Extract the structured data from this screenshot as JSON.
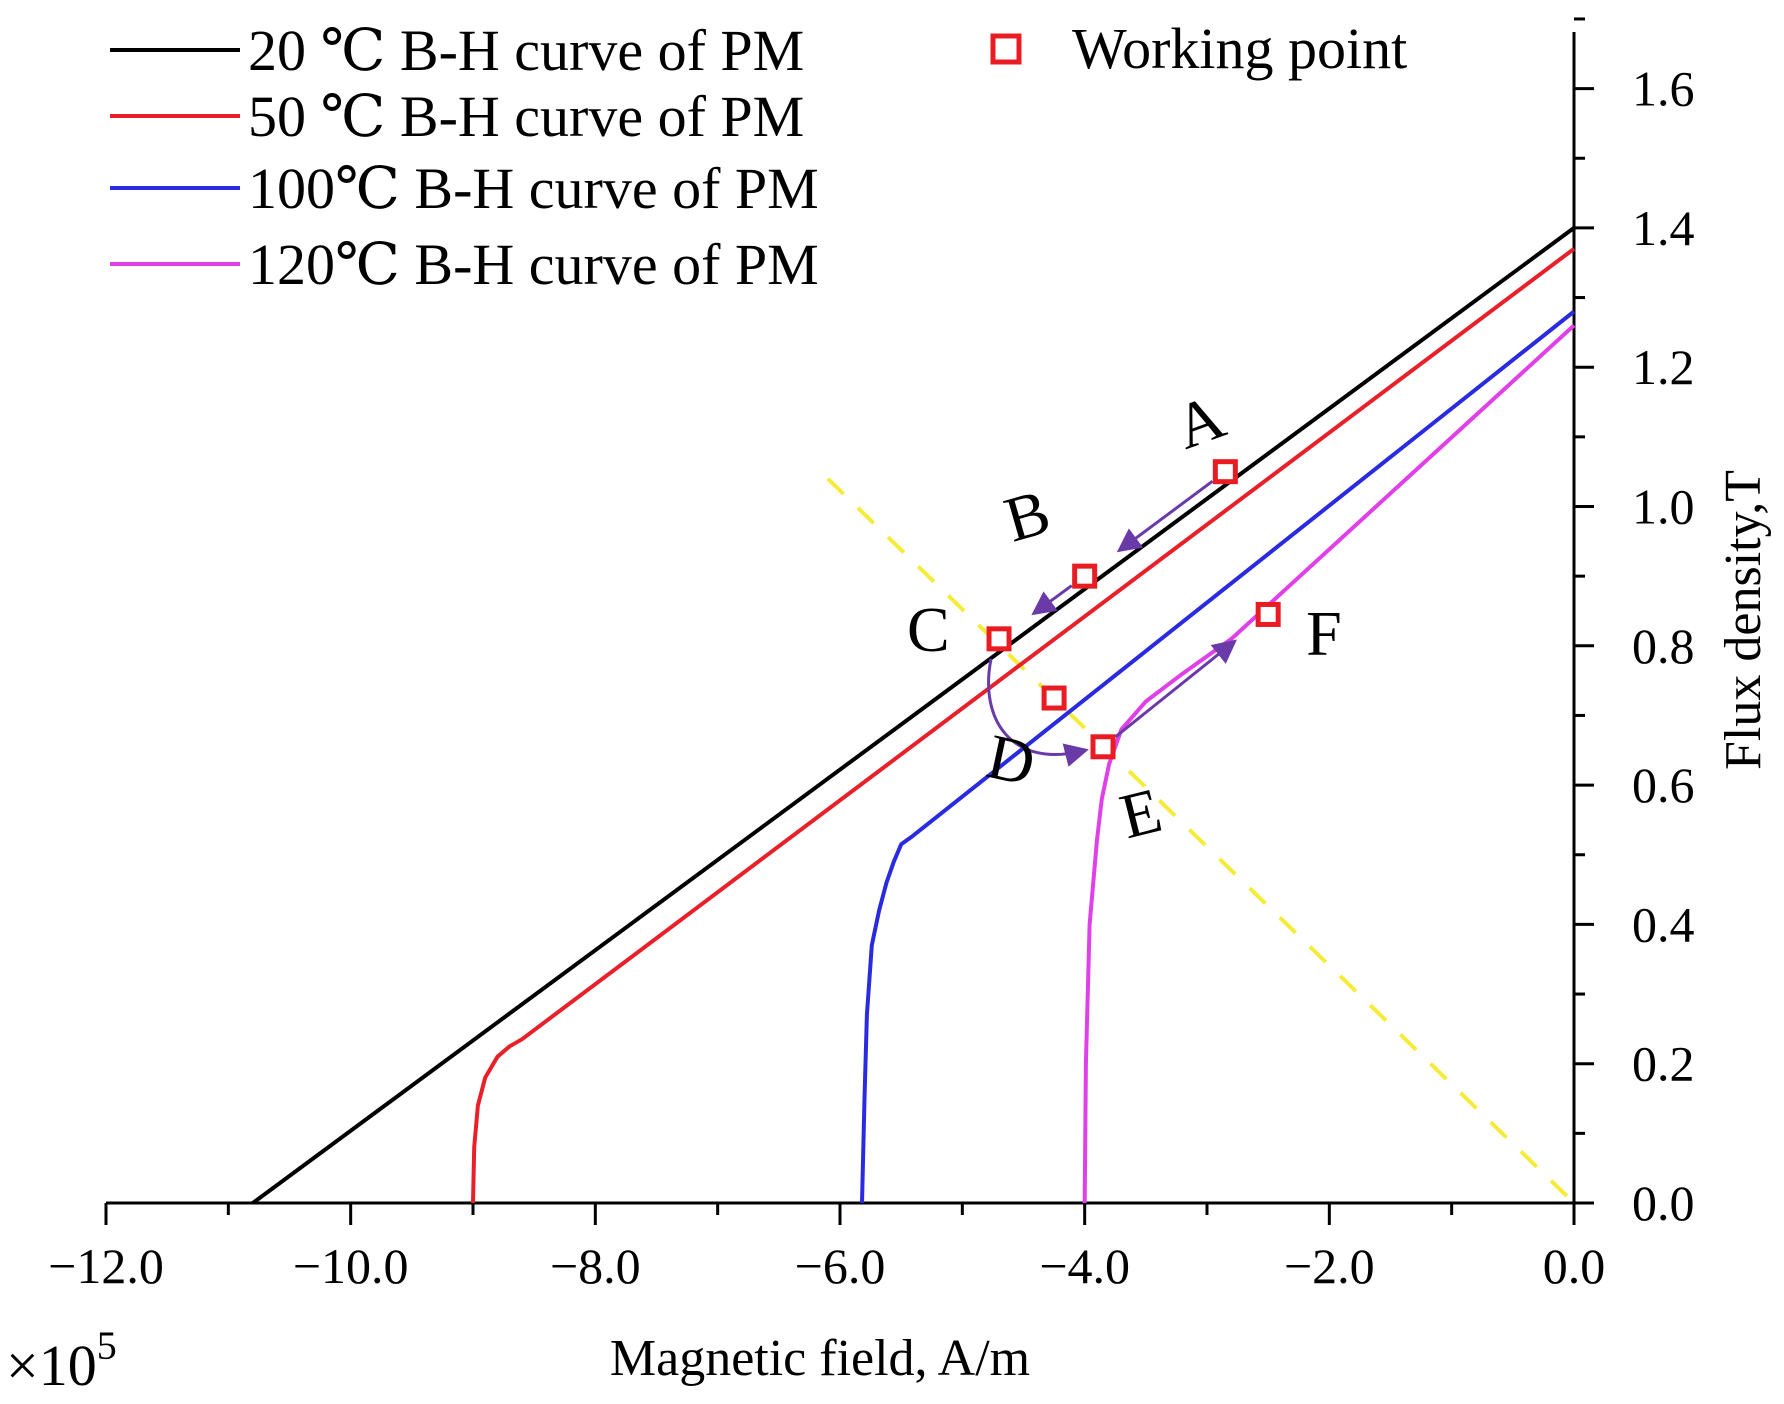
{
  "chart_data": {
    "type": "line",
    "title": "",
    "xlabel": "Magnetic field, A/m",
    "ylabel": "Flux density,T",
    "x_multiplier": "×10^5",
    "x_multiplier_base": "×10",
    "x_multiplier_exp": "5",
    "xlim": [
      -12.0,
      0.0
    ],
    "ylim": [
      0.0,
      1.72
    ],
    "x_ticks": [
      -12.0,
      -10.0,
      -8.0,
      -6.0,
      -4.0,
      -2.0,
      0.0
    ],
    "x_tick_labels": [
      "−12.0",
      "−10.0",
      "−8.0",
      "−6.0",
      "−4.0",
      "−2.0",
      "0.0"
    ],
    "y_ticks": [
      0.0,
      0.2,
      0.4,
      0.6,
      0.8,
      1.0,
      1.2,
      1.4,
      1.6
    ],
    "y_tick_labels": [
      "0.0",
      "0.2",
      "0.4",
      "0.6",
      "0.8",
      "1.0",
      "1.2",
      "1.4",
      "1.6"
    ],
    "y_axis_side": "right",
    "grid": false,
    "legend_position": "top-left",
    "series": [
      {
        "name": "20 ℃ B-H curve of PM",
        "color": "#000000",
        "x": [
          -10.8,
          0.0
        ],
        "y": [
          0.0,
          1.4
        ]
      },
      {
        "name": "50 ℃ B-H curve of PM",
        "color": "#e8202a",
        "x": [
          -9.0,
          -8.99,
          -8.96,
          -8.9,
          -8.8,
          -8.7,
          -8.6,
          0.0
        ],
        "y": [
          0.0,
          0.08,
          0.14,
          0.18,
          0.21,
          0.225,
          0.235,
          1.37
        ]
      },
      {
        "name": "100℃ B-H curve of PM",
        "color": "#2a2ae0",
        "x": [
          -5.82,
          -5.8,
          -5.78,
          -5.74,
          -5.68,
          -5.62,
          -5.56,
          -5.5,
          -5.42,
          0.0
        ],
        "y": [
          0.0,
          0.15,
          0.27,
          0.37,
          0.42,
          0.46,
          0.49,
          0.515,
          0.525,
          1.28
        ]
      },
      {
        "name": "120℃ B-H curve of PM",
        "color": "#e040e8",
        "x": [
          -4.0,
          -3.99,
          -3.96,
          -3.9,
          -3.86,
          -3.8,
          -3.7,
          -3.5,
          -3.2,
          -2.8,
          0.0
        ],
        "y": [
          0.0,
          0.2,
          0.4,
          0.52,
          0.58,
          0.63,
          0.68,
          0.72,
          0.76,
          0.81,
          1.26
        ]
      }
    ],
    "load_line": {
      "color": "#f5ec3a",
      "style": "dashed",
      "x": [
        -6.1,
        0.0
      ],
      "y": [
        1.04,
        0.0
      ]
    },
    "working_points": {
      "legend_label": "Working point",
      "color": "#e81c22",
      "points": [
        {
          "label": "A",
          "x": -2.85,
          "y": 1.05
        },
        {
          "label": "B",
          "x": -4.0,
          "y": 0.9
        },
        {
          "label": "C",
          "x": -4.7,
          "y": 0.81
        },
        {
          "label": "D",
          "x": -4.25,
          "y": 0.725
        },
        {
          "label": "E",
          "x": -3.85,
          "y": 0.655
        },
        {
          "label": "F",
          "x": -2.5,
          "y": 0.845
        }
      ]
    },
    "transitions": {
      "color": "#6a3aa8",
      "arrows": [
        {
          "from": "A",
          "to": "B"
        },
        {
          "from": "B",
          "to": "C"
        },
        {
          "from": "C",
          "to": "E"
        },
        {
          "from": "E",
          "to": "F"
        }
      ]
    }
  }
}
